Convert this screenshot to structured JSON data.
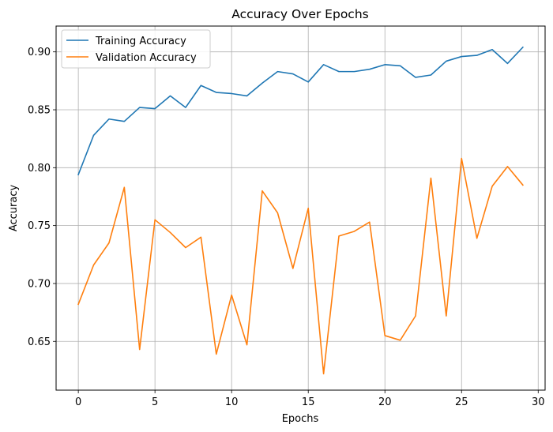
{
  "chart_data": {
    "type": "line",
    "title": "Accuracy Over Epochs",
    "xlabel": "Epochs",
    "ylabel": "Accuracy",
    "xlim": [
      -1.45,
      30.45
    ],
    "ylim": [
      0.6079,
      0.9223
    ],
    "xticks": [
      0,
      5,
      10,
      15,
      20,
      25,
      30
    ],
    "xtick_labels": [
      "0",
      "5",
      "10",
      "15",
      "20",
      "25",
      "30"
    ],
    "yticks": [
      0.65,
      0.7,
      0.75,
      0.8,
      0.85,
      0.9
    ],
    "ytick_labels": [
      "0.65",
      "0.70",
      "0.75",
      "0.80",
      "0.85",
      "0.90"
    ],
    "grid": true,
    "legend_position": "top-left",
    "x": [
      0,
      1,
      2,
      3,
      4,
      5,
      6,
      7,
      8,
      9,
      10,
      11,
      12,
      13,
      14,
      15,
      16,
      17,
      18,
      19,
      20,
      21,
      22,
      23,
      24,
      25,
      26,
      27,
      28,
      29
    ],
    "series": [
      {
        "name": "Training Accuracy",
        "color": "#1f77b4",
        "values": [
          0.794,
          0.828,
          0.842,
          0.84,
          0.852,
          0.851,
          0.862,
          0.852,
          0.871,
          0.865,
          0.864,
          0.862,
          0.873,
          0.883,
          0.881,
          0.874,
          0.889,
          0.883,
          0.883,
          0.885,
          0.889,
          0.888,
          0.878,
          0.88,
          0.892,
          0.896,
          0.897,
          0.902,
          0.89,
          0.904
        ]
      },
      {
        "name": "Validation Accuracy",
        "color": "#ff7f0e",
        "values": [
          0.682,
          0.716,
          0.735,
          0.783,
          0.643,
          0.755,
          0.744,
          0.731,
          0.74,
          0.639,
          0.69,
          0.647,
          0.78,
          0.761,
          0.713,
          0.765,
          0.622,
          0.741,
          0.745,
          0.753,
          0.655,
          0.651,
          0.672,
          0.791,
          0.672,
          0.808,
          0.739,
          0.784,
          0.801,
          0.785
        ]
      }
    ]
  }
}
